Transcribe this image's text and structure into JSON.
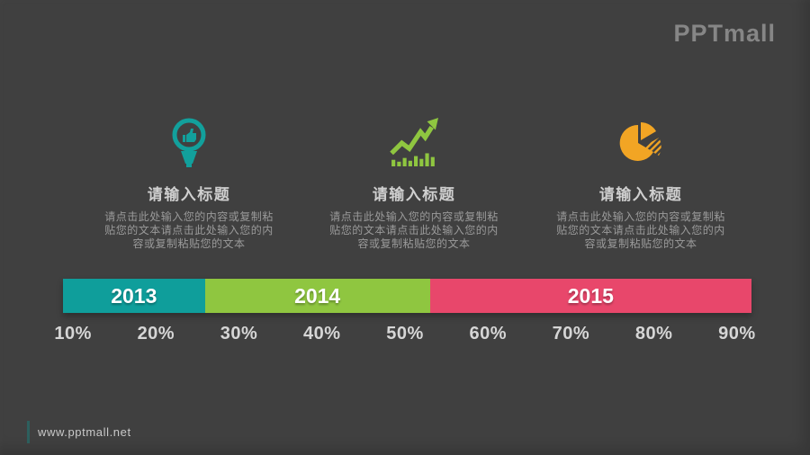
{
  "slide": {
    "background": "#404040"
  },
  "logo": {
    "text": "PPTmall",
    "color": "#868686"
  },
  "columns": [
    {
      "icon": "idea-lightbulb",
      "color": "#12a09c",
      "title": "请输入标题",
      "body": "请点击此处输入您的内容或复制粘贴您的文本请点击此处输入您的内容或复制粘贴您的文本"
    },
    {
      "icon": "growth-bar-chart-arrow",
      "color": "#8fc640",
      "title": "请输入标题",
      "body": "请点击此处输入您的内容或复制粘贴您的文本请点击此处输入您的内容或复制粘贴您的文本"
    },
    {
      "icon": "exploded-pie-chart",
      "color": "#f2a524",
      "title": "请输入标题",
      "body": "请点击此处输入您的内容或复制粘贴您的文本请点击此处输入您的内容或复制粘贴您的文本"
    }
  ],
  "timeline": {
    "segments": [
      {
        "label": "2013",
        "color": "#0f9e9b",
        "width_pct": 20.6
      },
      {
        "label": "2014",
        "color": "#8fc640",
        "width_pct": 32.7
      },
      {
        "label": "2015",
        "color": "#e8476b",
        "width_pct": 46.7
      }
    ],
    "ticks": [
      "10%",
      "20%",
      "30%",
      "40%",
      "50%",
      "60%",
      "70%",
      "80%",
      "90%"
    ]
  },
  "footer": {
    "url": "www.pptmall.net",
    "accent": "#1d7a77"
  }
}
